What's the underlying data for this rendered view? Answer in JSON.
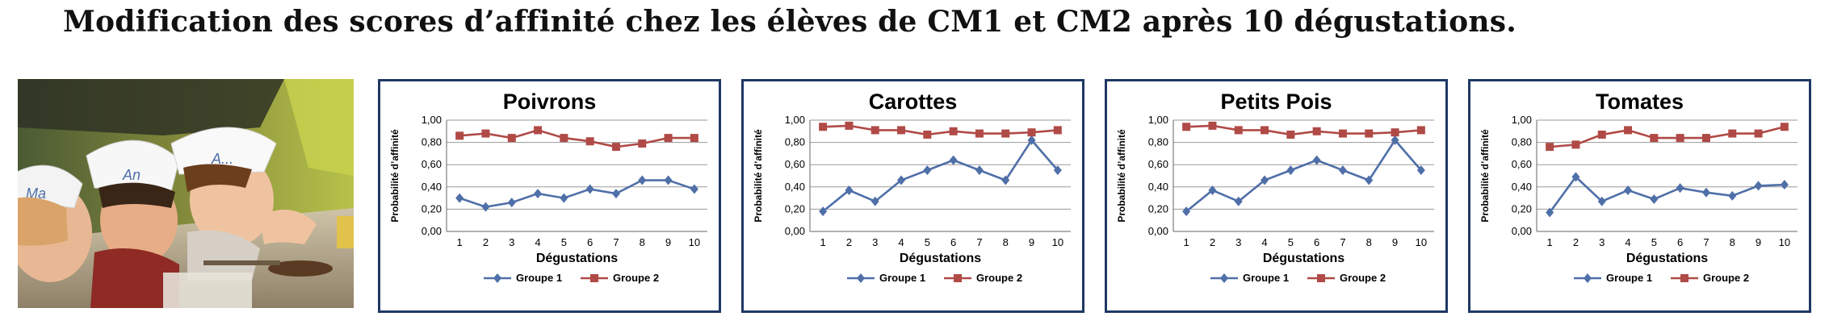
{
  "main_title": "Modification des scores d’affinité chez les élèves de CM1 et CM2 après 10 dégustations.",
  "photo": {
    "chef_hat_texts": [
      "Ma",
      "An",
      "A..."
    ]
  },
  "colors": {
    "groupe1": "#4f6fa8",
    "groupe2": "#b04a46",
    "frame": "#1f3864",
    "grid": "#9a9a9a"
  },
  "chart_data": [
    {
      "type": "line",
      "title": "Poivrons",
      "xlabel": "Dégustations",
      "ylabel": "Probabilité d’affinité",
      "x": [
        1,
        2,
        3,
        4,
        5,
        6,
        7,
        8,
        9,
        10
      ],
      "yticks": [
        "0,00",
        "0,20",
        "0,40",
        "0,60",
        "0,80",
        "1,00"
      ],
      "ylim": [
        0,
        1
      ],
      "grid": true,
      "legend_position": "bottom",
      "series": [
        {
          "name": "Groupe 1",
          "marker": "diamond",
          "values": [
            0.3,
            0.22,
            0.26,
            0.34,
            0.3,
            0.38,
            0.34,
            0.46,
            0.46,
            0.38
          ]
        },
        {
          "name": "Groupe 2",
          "marker": "square",
          "values": [
            0.86,
            0.88,
            0.84,
            0.91,
            0.84,
            0.81,
            0.76,
            0.79,
            0.84,
            0.84
          ]
        }
      ]
    },
    {
      "type": "line",
      "title": "Carottes",
      "xlabel": "Dégustations",
      "ylabel": "Probabilité d’affinité",
      "x": [
        1,
        2,
        3,
        4,
        5,
        6,
        7,
        8,
        9,
        10
      ],
      "yticks": [
        "0,00",
        "0,20",
        "0,40",
        "0,60",
        "0,80",
        "1,00"
      ],
      "ylim": [
        0,
        1
      ],
      "grid": true,
      "legend_position": "bottom",
      "series": [
        {
          "name": "Groupe 1",
          "marker": "diamond",
          "values": [
            0.18,
            0.37,
            0.27,
            0.46,
            0.55,
            0.64,
            0.55,
            0.46,
            0.82,
            0.55
          ]
        },
        {
          "name": "Groupe 2",
          "marker": "square",
          "values": [
            0.94,
            0.95,
            0.91,
            0.91,
            0.87,
            0.9,
            0.88,
            0.88,
            0.89,
            0.91
          ]
        }
      ]
    },
    {
      "type": "line",
      "title": "Petits Pois",
      "xlabel": "Dégustations",
      "ylabel": "Probabilité d’affinité",
      "x": [
        1,
        2,
        3,
        4,
        5,
        6,
        7,
        8,
        9,
        10
      ],
      "yticks": [
        "0,00",
        "0,20",
        "0,40",
        "0,60",
        "0,80",
        "1,00"
      ],
      "ylim": [
        0,
        1
      ],
      "grid": true,
      "legend_position": "bottom",
      "series": [
        {
          "name": "Groupe 1",
          "marker": "diamond",
          "values": [
            0.18,
            0.37,
            0.27,
            0.46,
            0.55,
            0.64,
            0.55,
            0.46,
            0.82,
            0.55
          ]
        },
        {
          "name": "Groupe 2",
          "marker": "square",
          "values": [
            0.94,
            0.95,
            0.91,
            0.91,
            0.87,
            0.9,
            0.88,
            0.88,
            0.89,
            0.91
          ]
        }
      ]
    },
    {
      "type": "line",
      "title": "Tomates",
      "xlabel": "Dégustations",
      "ylabel": "Probabilité d’affinité",
      "x": [
        1,
        2,
        3,
        4,
        5,
        6,
        7,
        8,
        9,
        10
      ],
      "yticks": [
        "0,00",
        "0,20",
        "0,40",
        "0,60",
        "0,80",
        "1,00"
      ],
      "ylim": [
        0,
        1
      ],
      "grid": true,
      "legend_position": "bottom",
      "series": [
        {
          "name": "Groupe 1",
          "marker": "diamond",
          "values": [
            0.17,
            0.49,
            0.27,
            0.37,
            0.29,
            0.39,
            0.35,
            0.32,
            0.41,
            0.42
          ]
        },
        {
          "name": "Groupe 2",
          "marker": "square",
          "values": [
            0.76,
            0.78,
            0.87,
            0.91,
            0.84,
            0.84,
            0.84,
            0.88,
            0.88,
            0.94
          ]
        }
      ]
    }
  ]
}
